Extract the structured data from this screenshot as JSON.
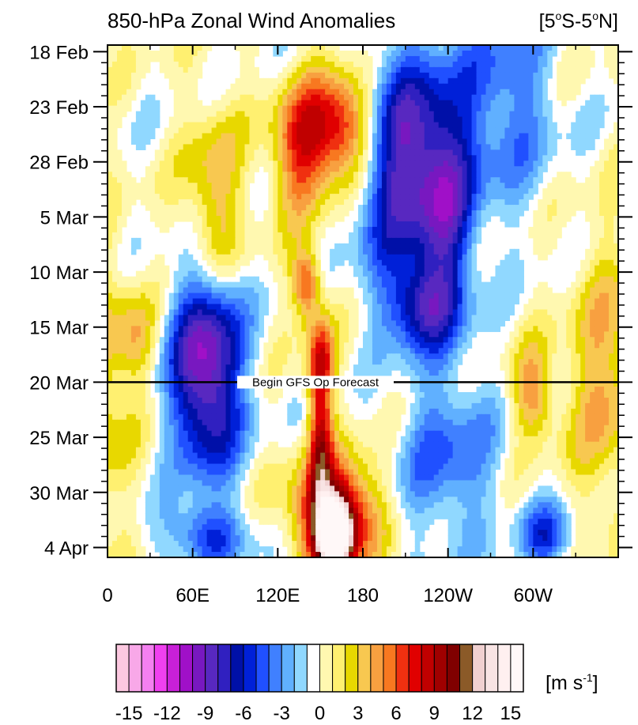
{
  "chart_data": {
    "type": "heatmap",
    "title": "850-hPa Zonal Wind Anomalies",
    "region": {
      "prefix": "[5",
      "deg1": "o",
      "mid": "S-5",
      "deg2": "o",
      "suffix": "N]"
    },
    "x_ticks": [
      {
        "lon": 0,
        "label": "0"
      },
      {
        "lon": 60,
        "label": "60E"
      },
      {
        "lon": 120,
        "label": "120E"
      },
      {
        "lon": 180,
        "label": "180"
      },
      {
        "lon": 240,
        "label": "120W"
      },
      {
        "lon": 300,
        "label": "60W"
      }
    ],
    "xlim": [
      0,
      360
    ],
    "y_ticks": [
      {
        "day": 0,
        "label": "18 Feb"
      },
      {
        "day": 5,
        "label": "23 Feb"
      },
      {
        "day": 10,
        "label": "28 Feb"
      },
      {
        "day": 15,
        "label": "5 Mar"
      },
      {
        "day": 20,
        "label": "10 Mar"
      },
      {
        "day": 25,
        "label": "15 Mar"
      },
      {
        "day": 30,
        "label": "20 Mar"
      },
      {
        "day": 35,
        "label": "25 Mar"
      },
      {
        "day": 40,
        "label": "30 Mar"
      },
      {
        "day": 45,
        "label": "4 Apr"
      }
    ],
    "ylim": [
      -0.6,
      45.9
    ],
    "forecast_line": {
      "day": 30,
      "label": "Begin GFS Op Forecast"
    },
    "colorbar": {
      "unit_prefix": "[m s",
      "unit_exp": "-1",
      "unit_suffix": "]",
      "colors": [
        "#fcc8e0",
        "#f8a8e8",
        "#f480f0",
        "#f040f0",
        "#c820d8",
        "#a010c8",
        "#7818c0",
        "#5828c0",
        "#3020c0",
        "#0010a8",
        "#0020d8",
        "#2050ff",
        "#4080ff",
        "#60b0ff",
        "#90d8ff",
        "#ffffff",
        "#fff8b0",
        "#fff070",
        "#e8d800",
        "#f8c850",
        "#f8a040",
        "#f87820",
        "#f03010",
        "#e00000",
        "#c00000",
        "#a00000",
        "#800000",
        "#8b5a28",
        "#f0d0d0",
        "#f8e4e4",
        "#fff0f0",
        "#fff8f8"
      ],
      "tick_values": [
        -15,
        -12,
        -9,
        -6,
        -3,
        0,
        3,
        6,
        9,
        12,
        15
      ],
      "tick_labels": [
        "-15",
        "-12",
        "-9",
        "-6",
        "-3",
        "0",
        "3",
        "6",
        "9",
        "12",
        "15"
      ]
    },
    "anomaly_features": [
      {
        "lon": 165,
        "day": 7,
        "dlon": 25,
        "dday": 5,
        "value": 9
      },
      {
        "lon": 135,
        "day": 9,
        "dlon": 20,
        "dday": 6,
        "value": 6
      },
      {
        "lon": 75,
        "day": 13,
        "dlon": 20,
        "dday": 8,
        "value": 4
      },
      {
        "lon": 140,
        "day": 21,
        "dlon": 10,
        "dday": 3,
        "value": 7
      },
      {
        "lon": 150,
        "day": 28,
        "dlon": 10,
        "dday": 4,
        "value": 7
      },
      {
        "lon": 150,
        "day": 35,
        "dlon": 8,
        "dday": 6,
        "value": 7
      },
      {
        "lon": 160,
        "day": 42,
        "dlon": 28,
        "dday": 5,
        "value": 11
      },
      {
        "lon": 160,
        "day": 44,
        "dlon": 12,
        "dday": 3,
        "value": 15
      },
      {
        "lon": 210,
        "day": 10,
        "dlon": 35,
        "dday": 10,
        "value": -9
      },
      {
        "lon": 240,
        "day": 15,
        "dlon": 20,
        "dday": 10,
        "value": -5
      },
      {
        "lon": 280,
        "day": 4,
        "dlon": 35,
        "dday": 10,
        "value": -4
      },
      {
        "lon": 220,
        "day": 23,
        "dlon": 25,
        "dday": 4,
        "value": -6
      },
      {
        "lon": 70,
        "day": 25,
        "dlon": 25,
        "dday": 6,
        "value": -6
      },
      {
        "lon": 70,
        "day": 32,
        "dlon": 25,
        "dday": 7,
        "value": -8
      },
      {
        "lon": 70,
        "day": 44,
        "dlon": 30,
        "dday": 3,
        "value": -5
      },
      {
        "lon": 240,
        "day": 37,
        "dlon": 35,
        "dday": 8,
        "value": -4
      },
      {
        "lon": 310,
        "day": 44,
        "dlon": 18,
        "dday": 3,
        "value": -5
      },
      {
        "lon": 350,
        "day": 30,
        "dlon": 25,
        "dday": 12,
        "value": 4
      },
      {
        "lon": 20,
        "day": 26,
        "dlon": 15,
        "dday": 4,
        "value": 3
      },
      {
        "lon": 300,
        "day": 31,
        "dlon": 15,
        "dday": 4,
        "value": 5
      }
    ]
  }
}
